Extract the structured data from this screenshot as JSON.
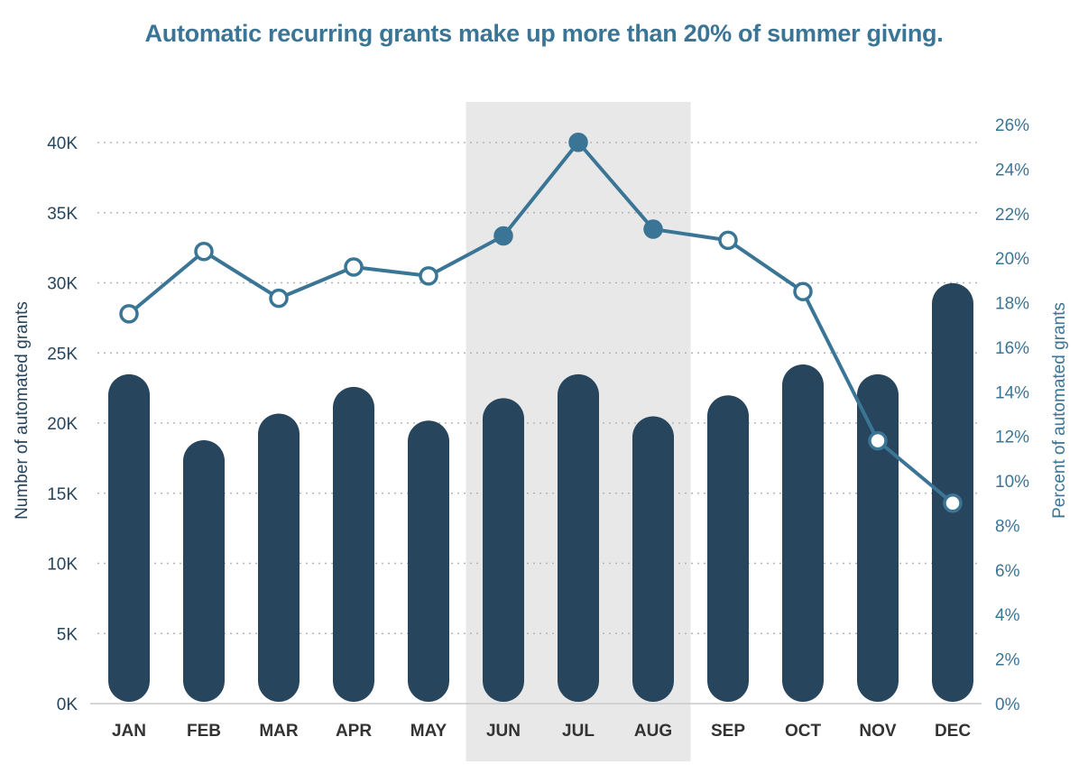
{
  "colors": {
    "bar": "#27455c",
    "line": "#3b7596",
    "title": "#3b7596",
    "left_axis_text": "#27455c",
    "right_axis_text": "#3b7596",
    "highlight": "#e8e8e8",
    "grid": "#b5b5b5"
  },
  "chart_data": {
    "type": "bar",
    "title": "Automatic recurring grants make up more than 20% of summer giving.",
    "categories": [
      "JAN",
      "FEB",
      "MAR",
      "APR",
      "MAY",
      "JUN",
      "JUL",
      "AUG",
      "SEP",
      "OCT",
      "NOV",
      "DEC"
    ],
    "highlight_categories": [
      "JUN",
      "JUL",
      "AUG"
    ],
    "series": [
      {
        "name": "Number of automated grants",
        "type": "bar",
        "axis": "left",
        "values": [
          22000,
          17300,
          19200,
          21100,
          18700,
          20300,
          22000,
          19000,
          20500,
          22700,
          22000,
          28500
        ]
      },
      {
        "name": "Percent of automated grants",
        "type": "line",
        "axis": "right",
        "values": [
          17.5,
          20.3,
          18.2,
          19.6,
          19.2,
          21.0,
          25.2,
          21.3,
          20.8,
          18.5,
          11.8,
          9.0
        ],
        "filled_markers": [
          "JUN",
          "JUL",
          "AUG"
        ]
      }
    ],
    "ylabel": "Number of automated grants",
    "y2label": "Percent of automated grants",
    "ylim": [
      0,
      40000
    ],
    "y2lim": [
      0,
      26
    ],
    "y_ticks": [
      "0K",
      "5K",
      "10K",
      "15K",
      "20K",
      "25K",
      "30K",
      "35K",
      "40K"
    ],
    "y2_ticks": [
      "0%",
      "2%",
      "4%",
      "6%",
      "8%",
      "10%",
      "12%",
      "14%",
      "16%",
      "18%",
      "20%",
      "22%",
      "24%",
      "26%"
    ],
    "grid": "horizontal dotted"
  }
}
